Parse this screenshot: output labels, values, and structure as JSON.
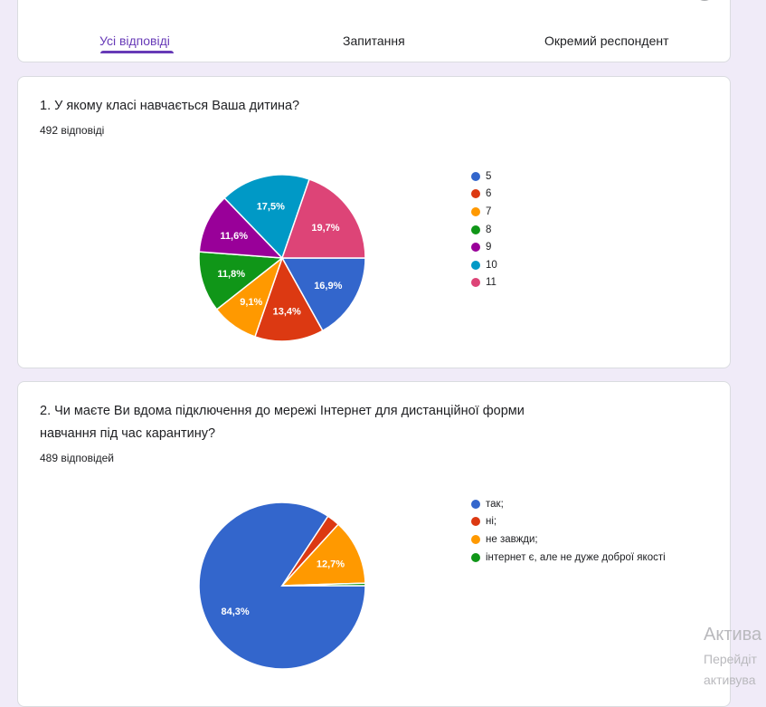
{
  "tabs": [
    {
      "label": "Усі відповіді",
      "active": true
    },
    {
      "label": "Запитання",
      "active": false
    },
    {
      "label": "Окремий респондент",
      "active": false
    }
  ],
  "accent_color": "#673ab7",
  "questions": [
    {
      "title_lines": [
        "1. У якому класі навчається Ваша дитина?"
      ],
      "responses": "492 відповіді"
    },
    {
      "title_lines": [
        "2. Чи маєте Ви вдома підключення до мережі Інтернет для дистанційної форми",
        "навчання під час карантину?"
      ],
      "responses": "489 відповідей"
    }
  ],
  "chart_data": [
    {
      "type": "pie",
      "categories": [
        "5",
        "6",
        "7",
        "8",
        "9",
        "10",
        "11"
      ],
      "values": [
        16.9,
        13.4,
        9.1,
        11.8,
        11.6,
        17.5,
        19.7
      ],
      "labels": [
        "16,9%",
        "13,4%",
        "9,1%",
        "11,8%",
        "11,6%",
        "17,5%",
        "19,7%"
      ],
      "colors": [
        "#3366cc",
        "#dc3912",
        "#ff9900",
        "#109618",
        "#990099",
        "#0099c6",
        "#dd4477"
      ],
      "legend": "right"
    },
    {
      "type": "pie",
      "categories": [
        "так;",
        "ні;",
        "не завжди;",
        "інтернет є, але не дуже доброї якості"
      ],
      "values": [
        84.3,
        2.5,
        12.7,
        0.5
      ],
      "labels": [
        "84,3%",
        "",
        "12,7%",
        ""
      ],
      "colors": [
        "#3366cc",
        "#dc3912",
        "#ff9900",
        "#109618"
      ],
      "legend": "right"
    }
  ],
  "watermark": {
    "line1": "Актива",
    "line2": "Перейдіт",
    "line3": "активува"
  }
}
